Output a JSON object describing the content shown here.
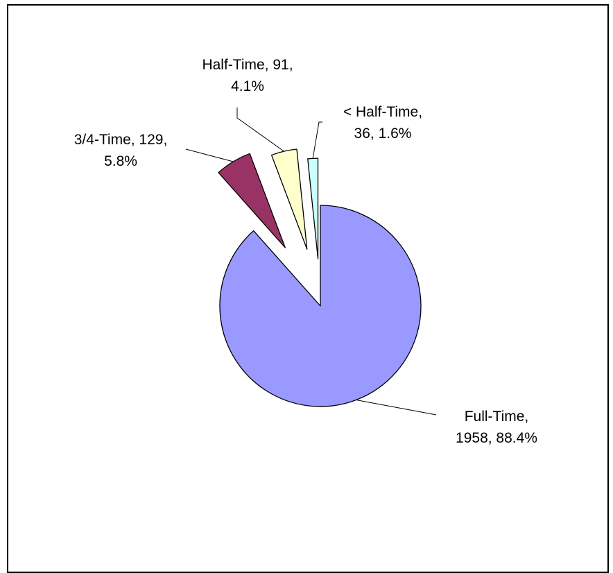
{
  "chart_data": {
    "type": "pie",
    "title": "",
    "start_angle_deg": 0,
    "direction": "clockwise",
    "slices": [
      {
        "label": "Full-Time",
        "value": 1958,
        "percent": "88.4%",
        "color": "#9999FF"
      },
      {
        "label": "3/4-Time",
        "value": 129,
        "percent": "5.8%",
        "color": "#993366"
      },
      {
        "label": "Half-Time",
        "value": 91,
        "percent": "4.1%",
        "color": "#FFFFCC"
      },
      {
        "label": "< Half-Time",
        "value": 36,
        "percent": "1.6%",
        "color": "#CCFFFF"
      }
    ],
    "data_labels": [
      {
        "line1": "Full-Time,",
        "line2": "1958, 88.4%"
      },
      {
        "line1": "3/4-Time, 129,",
        "line2": "5.8%"
      },
      {
        "line1": "Half-Time, 91,",
        "line2": "4.1%"
      },
      {
        "line1": "< Half-Time,",
        "line2": "36, 1.6%"
      }
    ],
    "exploded_slices": [
      "3/4-Time",
      "Half-Time",
      "< Half-Time"
    ],
    "legend": "none",
    "outline_color": "#000000"
  }
}
